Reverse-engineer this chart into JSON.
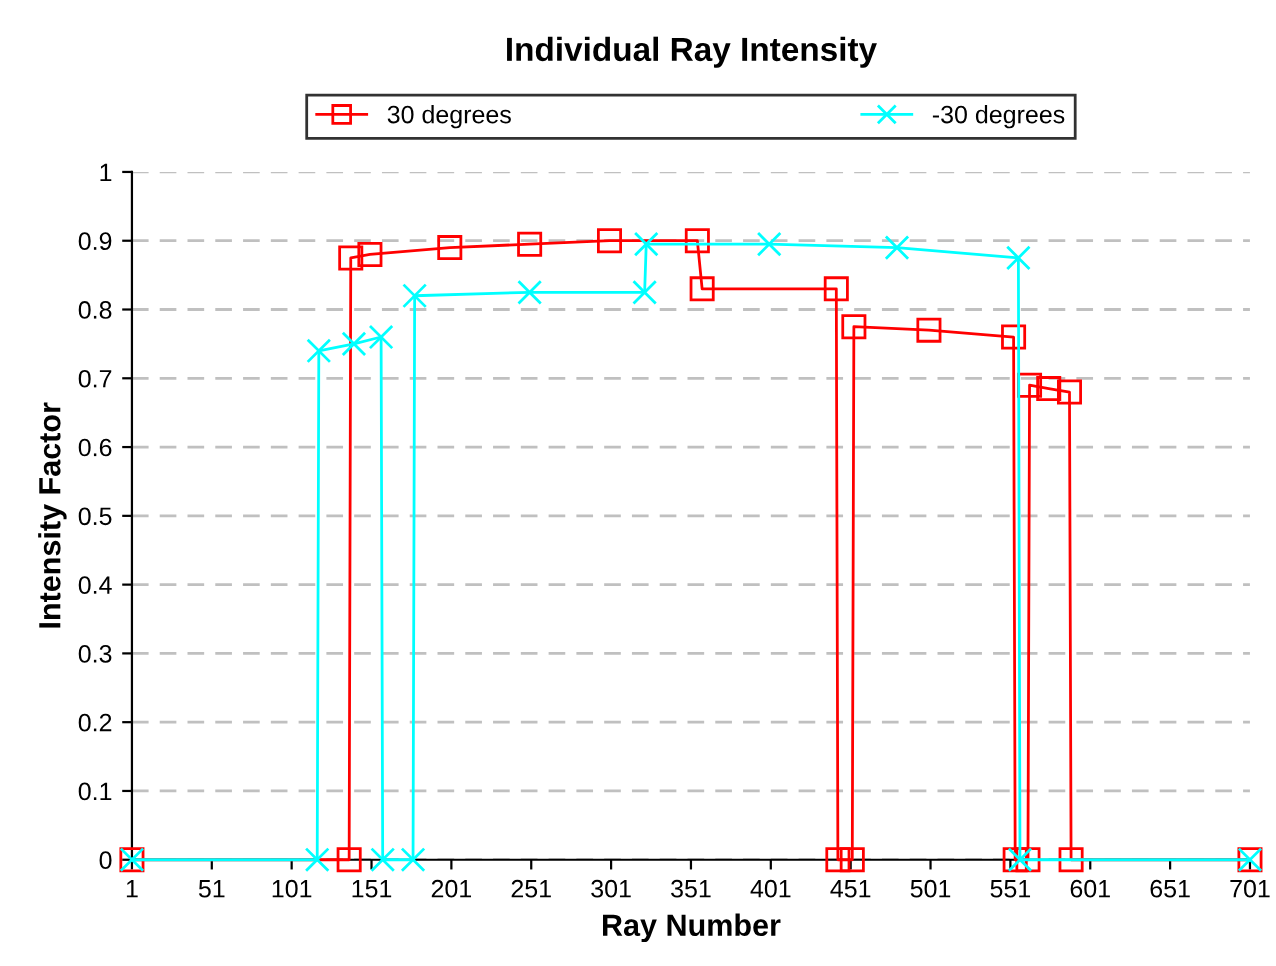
{
  "chart_data": {
    "type": "line",
    "title": "Individual Ray Intensity",
    "xlabel": "Ray Number",
    "ylabel": "Intensity Factor",
    "series": [
      {
        "name": "30 degrees",
        "color": "#ff0000",
        "marker": "square",
        "x": [
          1,
          137,
          138,
          150,
          200,
          250,
          300,
          355,
          358,
          442,
          443,
          452,
          453,
          500,
          553,
          554,
          562,
          563,
          575,
          588,
          589,
          701
        ],
        "values": [
          0,
          0,
          0.875,
          0.88,
          0.89,
          0.895,
          0.9,
          0.9,
          0.83,
          0.83,
          0,
          0,
          0.775,
          0.77,
          0.76,
          0,
          0,
          0.69,
          0.685,
          0.68,
          0,
          0
        ]
      },
      {
        "name": "-30 degrees",
        "color": "#00ffff",
        "marker": "cross",
        "x": [
          1,
          117,
          118,
          140,
          157,
          158,
          177,
          178,
          250,
          322,
          323,
          400,
          480,
          556,
          557,
          701
        ],
        "values": [
          0,
          0,
          0.74,
          0.75,
          0.76,
          0,
          0,
          0.82,
          0.825,
          0.825,
          0.895,
          0.895,
          0.89,
          0.875,
          0,
          0
        ]
      }
    ],
    "xlim": [
      1,
      701
    ],
    "xticks": [
      1,
      51,
      101,
      151,
      201,
      251,
      301,
      351,
      401,
      451,
      501,
      551,
      601,
      651,
      701
    ],
    "ylim": [
      0,
      1
    ],
    "yticks": [
      0,
      0.1,
      0.2,
      0.3,
      0.4,
      0.5,
      0.6,
      0.7,
      0.8,
      0.9,
      1
    ],
    "grid": "y",
    "legend": "top"
  }
}
